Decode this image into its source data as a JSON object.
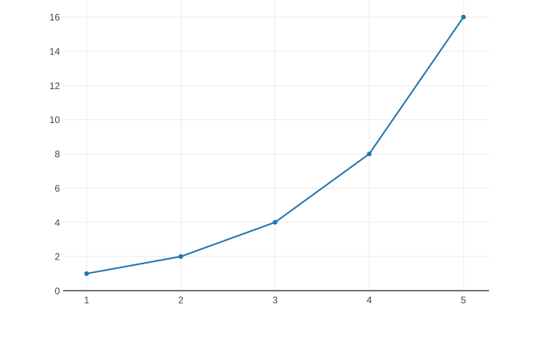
{
  "page": {
    "background": "#ffffff"
  },
  "chart_data": {
    "type": "line",
    "title": "",
    "xlabel": "",
    "ylabel": "",
    "x": [
      1,
      2,
      3,
      4,
      5
    ],
    "y": [
      1,
      2,
      4,
      8,
      16
    ],
    "x_ticks": [
      "1",
      "2",
      "3",
      "4",
      "5"
    ],
    "x_tick_values": [
      1,
      2,
      3,
      4,
      5
    ],
    "y_ticks": [
      "0",
      "2",
      "4",
      "6",
      "8",
      "10",
      "12",
      "14",
      "16"
    ],
    "y_tick_values": [
      0,
      2,
      4,
      6,
      8,
      10,
      12,
      14,
      16
    ],
    "xlim": [
      0.75,
      5.27
    ],
    "ylim": [
      0,
      17
    ],
    "grid": true,
    "legend": false,
    "line_color": "#1f77b4",
    "marker_color": "#1f77b4",
    "marker_radius": 3,
    "line_width": 2,
    "grid_color": "#ebebeb",
    "zeroline_color": "#444444",
    "tick_label_color": "#444444",
    "plot_background": "#ffffff"
  }
}
